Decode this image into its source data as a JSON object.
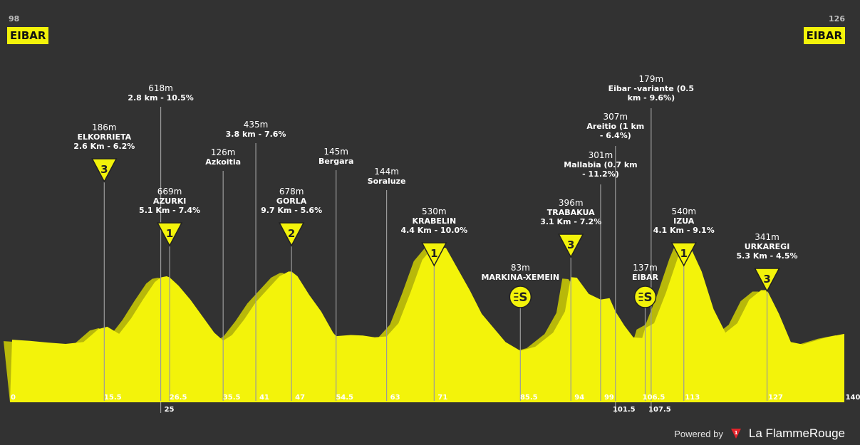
{
  "start": {
    "km_label": "98",
    "name": "EIBAR"
  },
  "finish": {
    "km_label": "126",
    "name": "EIBAR"
  },
  "footer": {
    "powered": "Powered by",
    "brand": "La FlammeRouge",
    "logo_glyph": "1"
  },
  "colors": {
    "profile": "#f3f30a",
    "shadow": "#b8b80a",
    "background": "#323232",
    "line": "#9a9a9a"
  },
  "chart_data": {
    "type": "area",
    "xlabel": "",
    "ylabel": "",
    "xlim": [
      0,
      140
    ],
    "profile_shape": [
      [
        0,
        130
      ],
      [
        3,
        125
      ],
      [
        6,
        118
      ],
      [
        9,
        112
      ],
      [
        12,
        120
      ],
      [
        14.5,
        175
      ],
      [
        16,
        185
      ],
      [
        18,
        155
      ],
      [
        20,
        220
      ],
      [
        22,
        300
      ],
      [
        24,
        375
      ],
      [
        25,
        395
      ],
      [
        26,
        400
      ],
      [
        26.5,
        395
      ],
      [
        28,
        360
      ],
      [
        30,
        300
      ],
      [
        32,
        230
      ],
      [
        34,
        160
      ],
      [
        35.5,
        126
      ],
      [
        37,
        150
      ],
      [
        39,
        215
      ],
      [
        41,
        290
      ],
      [
        43,
        345
      ],
      [
        45,
        400
      ],
      [
        46.5,
        420
      ],
      [
        47,
        420
      ],
      [
        48,
        400
      ],
      [
        50,
        320
      ],
      [
        52,
        250
      ],
      [
        54,
        160
      ],
      [
        54.5,
        145
      ],
      [
        57,
        150
      ],
      [
        59,
        148
      ],
      [
        61,
        140
      ],
      [
        63,
        144
      ],
      [
        65,
        200
      ],
      [
        67,
        330
      ],
      [
        69,
        470
      ],
      [
        71,
        530
      ],
      [
        73,
        520
      ],
      [
        75,
        430
      ],
      [
        77,
        340
      ],
      [
        79,
        240
      ],
      [
        81,
        180
      ],
      [
        83,
        120
      ],
      [
        85.5,
        83
      ],
      [
        88,
        100
      ],
      [
        91,
        160
      ],
      [
        93,
        250
      ],
      [
        94,
        396
      ],
      [
        95,
        394
      ],
      [
        97,
        325
      ],
      [
        99,
        301
      ],
      [
        100.5,
        307
      ],
      [
        101.5,
        250
      ],
      [
        103,
        190
      ],
      [
        104.5,
        140
      ],
      [
        106,
        137
      ],
      [
        106.5,
        179
      ],
      [
        108,
        200
      ],
      [
        110,
        330
      ],
      [
        112,
        480
      ],
      [
        113,
        540
      ],
      [
        114,
        530
      ],
      [
        116,
        420
      ],
      [
        118,
        260
      ],
      [
        120,
        160
      ],
      [
        122,
        200
      ],
      [
        124,
        300
      ],
      [
        126,
        341
      ],
      [
        127,
        341
      ],
      [
        129,
        240
      ],
      [
        131,
        120
      ],
      [
        133,
        110
      ],
      [
        135,
        125
      ],
      [
        137,
        140
      ],
      [
        140,
        155
      ]
    ],
    "ticks": [
      {
        "km": 0,
        "label": "0"
      },
      {
        "km": 15.5,
        "label": "15.5"
      },
      {
        "km": 25,
        "label": "25",
        "low": true
      },
      {
        "km": 26.5,
        "label": "26.5"
      },
      {
        "km": 35.5,
        "label": "35.5"
      },
      {
        "km": 41,
        "label": "41"
      },
      {
        "km": 47,
        "label": "47"
      },
      {
        "km": 54.5,
        "label": "54.5"
      },
      {
        "km": 63,
        "label": "63"
      },
      {
        "km": 71,
        "label": "71"
      },
      {
        "km": 85.5,
        "label": "85.5"
      },
      {
        "km": 94,
        "label": "94"
      },
      {
        "km": 99,
        "label": "99"
      },
      {
        "km": 101.5,
        "label": "101.5",
        "low": true
      },
      {
        "km": 106.5,
        "label": "106.5"
      },
      {
        "km": 107.5,
        "label": "107.5",
        "low": true
      },
      {
        "km": 113,
        "label": "113"
      },
      {
        "km": 127,
        "label": "127"
      },
      {
        "km": 140,
        "label": "140"
      }
    ],
    "points": [
      {
        "km": 15.5,
        "alt": "186m",
        "name": "ELKORRIETA",
        "detail": [
          "2.6 Km - 6.2%"
        ],
        "cat": "3"
      },
      {
        "km": 25,
        "alt": "618m",
        "name": "",
        "detail": [
          "2.8 km - 10.5%"
        ],
        "cat": ""
      },
      {
        "km": 26.5,
        "alt": "669m",
        "name": "AZURKI",
        "detail": [
          "5.1 Km - 7.4%"
        ],
        "cat": "1"
      },
      {
        "km": 35.5,
        "alt": "126m",
        "name": "Azkoitia",
        "detail": [],
        "cat": ""
      },
      {
        "km": 41,
        "alt": "435m",
        "name": "",
        "detail": [
          "3.8 km - 7.6%"
        ],
        "cat": ""
      },
      {
        "km": 47,
        "alt": "678m",
        "name": "GORLA",
        "detail": [
          "9.7 Km - 5.6%"
        ],
        "cat": "2"
      },
      {
        "km": 54.5,
        "alt": "145m",
        "name": "Bergara",
        "detail": [],
        "cat": ""
      },
      {
        "km": 63,
        "alt": "144m",
        "name": "Soraluze",
        "detail": [],
        "cat": ""
      },
      {
        "km": 71,
        "alt": "530m",
        "name": "KRABELIN",
        "detail": [
          "4.4 Km - 10.0%"
        ],
        "cat": "1"
      },
      {
        "km": 85.5,
        "alt": "83m",
        "name": "MARKINA-XEMEIN",
        "detail": [],
        "cat": "S"
      },
      {
        "km": 94,
        "alt": "396m",
        "name": "TRABAKUA",
        "detail": [
          "3.1 Km - 7.2%"
        ],
        "cat": "3"
      },
      {
        "km": 99,
        "alt": "301m",
        "name": "Mallabia (0.7 km",
        "detail": [
          "- 11.2%)"
        ],
        "cat": ""
      },
      {
        "km": 101.5,
        "alt": "307m",
        "name": "Areitio (1 km",
        "detail": [
          "- 6.4%)"
        ],
        "cat": ""
      },
      {
        "km": 106.5,
        "alt": "137m",
        "name": "EIBAR",
        "detail": [],
        "cat": "S"
      },
      {
        "km": 107.5,
        "alt": "179m",
        "name": "Eibar -variante (0.5",
        "detail": [
          "km - 9.6%)"
        ],
        "cat": ""
      },
      {
        "km": 113,
        "alt": "540m",
        "name": "IZUA",
        "detail": [
          "4.1 Km - 9.1%"
        ],
        "cat": "1"
      },
      {
        "km": 127,
        "alt": "341m",
        "name": "URKAREGI",
        "detail": [
          "5.3 Km - 4.5%"
        ],
        "cat": "3"
      }
    ]
  }
}
